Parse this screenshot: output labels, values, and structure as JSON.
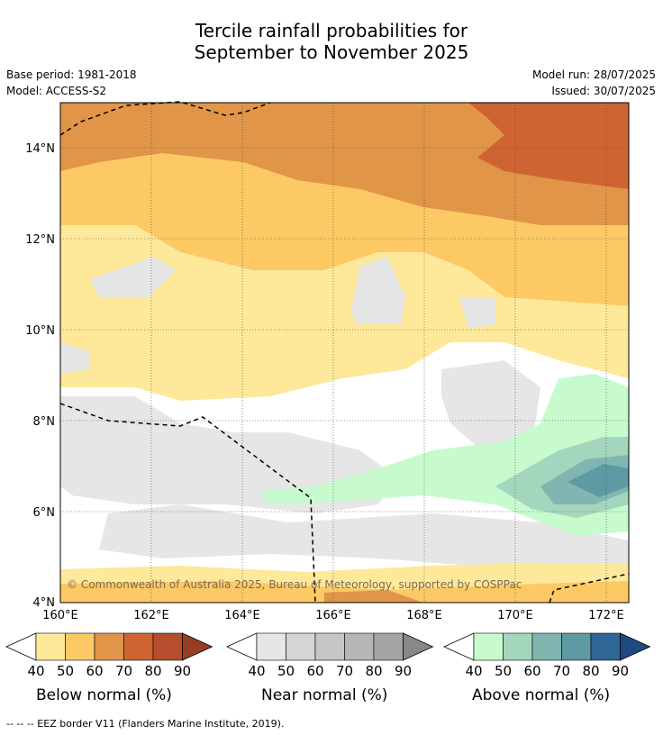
{
  "title_line1": "Tercile rainfall probabilities for",
  "title_line2": "September to November 2025",
  "base_period": "Base period: 1981-2018",
  "model": "Model: ACCESS-S2",
  "model_run": "Model run: 28/07/2025",
  "issued": "Issued: 30/07/2025",
  "copyright": "© Commonwealth of Australia 2025, Bureau of Meteorology, supported by COSPPac",
  "lat_labels": [
    "14°N",
    "12°N",
    "10°N",
    "8°N",
    "6°N",
    "4°N"
  ],
  "lon_labels": [
    "160°E",
    "162°E",
    "164°E",
    "166°E",
    "168°E",
    "170°E",
    "172°E"
  ],
  "legends": [
    {
      "title": "Below normal (%)",
      "ticks": [
        "40",
        "50",
        "60",
        "70",
        "80",
        "90"
      ],
      "colors": [
        "#fee899",
        "#fdc964",
        "#e09548",
        "#cf6433",
        "#b44e2d",
        "#963e22"
      ]
    },
    {
      "title": "Near normal (%)",
      "ticks": [
        "40",
        "50",
        "60",
        "70",
        "80",
        "90"
      ],
      "colors": [
        "#e6e6e6",
        "#d5d5d5",
        "#c6c6c6",
        "#b6b6b6",
        "#a5a5a5",
        "#888888"
      ]
    },
    {
      "title": "Above normal (%)",
      "ticks": [
        "40",
        "50",
        "60",
        "70",
        "80",
        "90"
      ],
      "colors": [
        "#c7fbce",
        "#a3d6bd",
        "#81b6b0",
        "#5e9aa3",
        "#2f6597",
        "#1e4a82"
      ]
    }
  ],
  "footnote": "-- -- -- EEZ border V11 (Flanders Marine Institute, 2019)."
}
